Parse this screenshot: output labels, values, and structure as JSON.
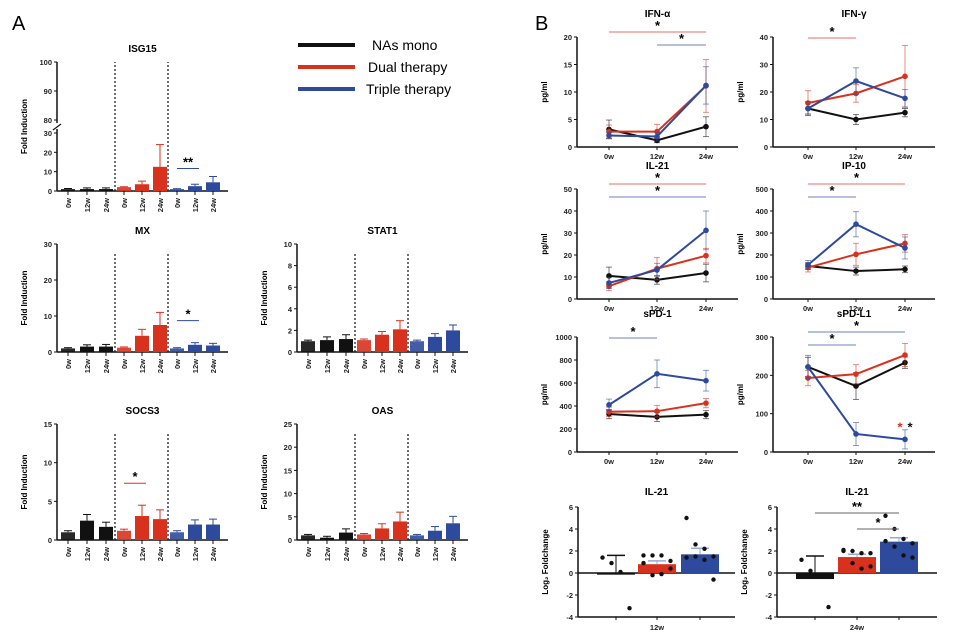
{
  "panels": {
    "a": "A",
    "b": "B"
  },
  "legend": [
    {
      "label": "NAs mono",
      "color": "#111111"
    },
    {
      "label": "Dual therapy",
      "color": "#d8321f"
    },
    {
      "label": "Triple therapy",
      "color": "#2d4a9c"
    }
  ],
  "chart_data": [
    {
      "type": "bar",
      "title": "ISG15",
      "ylabel": "Fold Induction",
      "ylim": [
        0,
        100
      ],
      "axis_break": [
        30,
        80
      ],
      "yticks": [
        "0",
        "10",
        "20",
        "30",
        "80",
        "90",
        "100"
      ],
      "xticklabels": [
        "0w",
        "12w",
        "24w"
      ],
      "series": [
        {
          "name": "NAs mono",
          "values": [
            1,
            1,
            1
          ],
          "err": [
            0.3,
            0.6,
            0.6
          ]
        },
        {
          "name": "Dual therapy",
          "values": [
            2,
            3.5,
            12.5
          ],
          "err": [
            0.2,
            1.6,
            11.5
          ]
        },
        {
          "name": "Triple therapy",
          "values": [
            1,
            2.5,
            4.5
          ],
          "err": [
            0.2,
            1,
            3
          ]
        }
      ],
      "annotations": [
        {
          "text": "**",
          "group": 2,
          "from": 0,
          "to": 1
        }
      ]
    },
    {
      "type": "bar",
      "title": "MX",
      "ylabel": "Fold Induction",
      "ylim": [
        0,
        30
      ],
      "yticks": [
        "0",
        "10",
        "20",
        "30"
      ],
      "xticklabels": [
        "0w",
        "12w",
        "24w"
      ],
      "series": [
        {
          "name": "NAs mono",
          "values": [
            1,
            1.5,
            1.5
          ],
          "err": [
            0.2,
            0.5,
            0.6
          ]
        },
        {
          "name": "Dual therapy",
          "values": [
            1.2,
            4.5,
            7.5
          ],
          "err": [
            0.2,
            1.8,
            3.5
          ]
        },
        {
          "name": "Triple therapy",
          "values": [
            1,
            2,
            1.8
          ],
          "err": [
            0.2,
            0.6,
            0.6
          ]
        }
      ],
      "annotations": [
        {
          "text": "*",
          "group": 2,
          "from": 0,
          "to": 1
        }
      ]
    },
    {
      "type": "bar",
      "title": "STAT1",
      "ylabel": "Fold Induction",
      "ylim": [
        0,
        10
      ],
      "yticks": [
        "0",
        "2",
        "4",
        "6",
        "8",
        "10"
      ],
      "xticklabels": [
        "0w",
        "12w",
        "24w"
      ],
      "series": [
        {
          "name": "NAs mono",
          "values": [
            1,
            1.1,
            1.2
          ],
          "err": [
            0.1,
            0.3,
            0.4
          ]
        },
        {
          "name": "Dual therapy",
          "values": [
            1.1,
            1.6,
            2.1
          ],
          "err": [
            0.1,
            0.3,
            0.8
          ]
        },
        {
          "name": "Triple therapy",
          "values": [
            1,
            1.4,
            2
          ],
          "err": [
            0.1,
            0.3,
            0.5
          ]
        }
      ],
      "annotations": []
    },
    {
      "type": "bar",
      "title": "SOCS3",
      "ylabel": "Fold Induction",
      "ylim": [
        0,
        15
      ],
      "yticks": [
        "0",
        "5",
        "10",
        "15"
      ],
      "xticklabels": [
        "0w",
        "12w",
        "24w"
      ],
      "series": [
        {
          "name": "NAs mono",
          "values": [
            1,
            2.5,
            1.7
          ],
          "err": [
            0.2,
            0.8,
            0.6
          ]
        },
        {
          "name": "Dual therapy",
          "values": [
            1.2,
            3.1,
            2.7
          ],
          "err": [
            0.2,
            1.4,
            1.2
          ]
        },
        {
          "name": "Triple therapy",
          "values": [
            1,
            2,
            2
          ],
          "err": [
            0.2,
            0.6,
            0.7
          ]
        }
      ],
      "annotations": [
        {
          "text": "*",
          "group": 1,
          "from": 0,
          "to": 1
        }
      ]
    },
    {
      "type": "bar",
      "title": "OAS",
      "ylabel": "Fold Induction",
      "ylim": [
        0,
        25
      ],
      "yticks": [
        "0",
        "5",
        "10",
        "15",
        "20",
        "25"
      ],
      "xticklabels": [
        "0w",
        "12w",
        "24w"
      ],
      "series": [
        {
          "name": "NAs mono",
          "values": [
            1,
            0.5,
            1.6
          ],
          "err": [
            0.2,
            0.3,
            0.8
          ]
        },
        {
          "name": "Dual therapy",
          "values": [
            1.2,
            2.5,
            4
          ],
          "err": [
            0.2,
            1,
            2
          ]
        },
        {
          "name": "Triple therapy",
          "values": [
            1,
            2,
            3.6
          ],
          "err": [
            0.2,
            0.9,
            1.5
          ]
        }
      ],
      "annotations": []
    },
    {
      "type": "line",
      "title": "IFN-α",
      "ylabel": "pg/ml",
      "ylim": [
        0,
        20
      ],
      "yticks": [
        "0",
        "5",
        "10",
        "15",
        "20"
      ],
      "x": [
        "0w",
        "12w",
        "24w"
      ],
      "series": [
        {
          "name": "NAs mono",
          "values": [
            3.2,
            1.2,
            3.7
          ],
          "err": [
            1.7,
            0.4,
            1.8
          ]
        },
        {
          "name": "Dual therapy",
          "values": [
            2.8,
            2.8,
            11.1
          ],
          "err": [
            1.2,
            1.3,
            4.8
          ]
        },
        {
          "name": "Triple therapy",
          "values": [
            2.1,
            1.9,
            11.2
          ],
          "err": [
            0.5,
            0.8,
            3.4
          ]
        }
      ],
      "annotations": [
        {
          "text": "*",
          "from": 0,
          "to": 2,
          "color": "#d8321f",
          "level": 0
        },
        {
          "text": "*",
          "from": 1,
          "to": 2,
          "color": "#2d4a9c",
          "level": 1
        }
      ]
    },
    {
      "type": "line",
      "title": "IFN-γ",
      "ylabel": "pg/ml",
      "ylim": [
        0,
        40
      ],
      "yticks": [
        "0",
        "10",
        "20",
        "30",
        "40"
      ],
      "x": [
        "0w",
        "12w",
        "24w"
      ],
      "series": [
        {
          "name": "NAs mono",
          "values": [
            14,
            10,
            12.5
          ],
          "err": [
            2,
            1.8,
            1.5
          ]
        },
        {
          "name": "Dual therapy",
          "values": [
            16,
            19.5,
            25.7
          ],
          "err": [
            4.5,
            3.2,
            11.2
          ]
        },
        {
          "name": "Triple therapy",
          "values": [
            14,
            24,
            17.7
          ],
          "err": [
            2.5,
            4.8,
            3.2
          ]
        }
      ],
      "annotations": [
        {
          "text": "*",
          "from": 0,
          "to": 1,
          "color": "#d8321f",
          "level": 0
        }
      ]
    },
    {
      "type": "line",
      "title": "IL-21",
      "ylabel": "pg/ml",
      "ylim": [
        0,
        50
      ],
      "yticks": [
        "0",
        "10",
        "20",
        "30",
        "40",
        "50"
      ],
      "x": [
        "0w",
        "12w",
        "24w"
      ],
      "series": [
        {
          "name": "NAs mono",
          "values": [
            10.5,
            8.7,
            11.8
          ],
          "err": [
            4,
            2,
            4
          ]
        },
        {
          "name": "Dual therapy",
          "values": [
            5.8,
            13.8,
            19.7
          ],
          "err": [
            2,
            5,
            3.3
          ]
        },
        {
          "name": "Triple therapy",
          "values": [
            7.3,
            13.2,
            31.2
          ],
          "err": [
            2.5,
            3,
            8.8
          ]
        }
      ],
      "annotations": [
        {
          "text": "*",
          "from": 0,
          "to": 2,
          "color": "#d8321f",
          "level": 0
        },
        {
          "text": "*",
          "from": 0,
          "to": 2,
          "color": "#2d4a9c",
          "level": 1
        }
      ]
    },
    {
      "type": "line",
      "title": "IP-10",
      "ylabel": "pg/ml",
      "ylim": [
        0,
        500
      ],
      "yticks": [
        "0",
        "100",
        "200",
        "300",
        "400",
        "500"
      ],
      "x": [
        "0w",
        "12w",
        "24w"
      ],
      "series": [
        {
          "name": "NAs mono",
          "values": [
            150,
            127,
            135
          ],
          "err": [
            15,
            18,
            15
          ]
        },
        {
          "name": "Dual therapy",
          "values": [
            143,
            203,
            253
          ],
          "err": [
            20,
            50,
            40
          ]
        },
        {
          "name": "Triple therapy",
          "values": [
            155,
            340,
            232
          ],
          "err": [
            20,
            57,
            50
          ]
        }
      ],
      "annotations": [
        {
          "text": "*",
          "from": 0,
          "to": 2,
          "color": "#d8321f",
          "level": 0
        },
        {
          "text": "*",
          "from": 0,
          "to": 1,
          "color": "#2d4a9c",
          "level": 1
        }
      ]
    },
    {
      "type": "line",
      "title": "sPD-1",
      "ylabel": "pg/ml",
      "ylim": [
        0,
        1000
      ],
      "yticks": [
        "0",
        "200",
        "400",
        "600",
        "800",
        "1000"
      ],
      "x": [
        "0w",
        "12w",
        "24w"
      ],
      "series": [
        {
          "name": "NAs mono",
          "values": [
            330,
            305,
            325
          ],
          "err": [
            40,
            40,
            35
          ]
        },
        {
          "name": "Dual therapy",
          "values": [
            350,
            355,
            425
          ],
          "err": [
            40,
            50,
            40
          ]
        },
        {
          "name": "Triple therapy",
          "values": [
            410,
            680,
            620
          ],
          "err": [
            50,
            120,
            90
          ]
        }
      ],
      "annotations": [
        {
          "text": "*",
          "from": 0,
          "to": 1,
          "color": "#2d4a9c",
          "level": 0
        }
      ]
    },
    {
      "type": "line",
      "title": "sPD-L1",
      "ylabel": "pg/ml",
      "ylim": [
        0,
        300
      ],
      "yticks": [
        "0",
        "100",
        "200",
        "300"
      ],
      "x": [
        "0w",
        "12w",
        "24w"
      ],
      "series": [
        {
          "name": "NAs mono",
          "values": [
            222,
            172,
            233
          ],
          "err": [
            25,
            35,
            15
          ]
        },
        {
          "name": "Dual therapy",
          "values": [
            193,
            203,
            253
          ],
          "err": [
            20,
            25,
            30
          ]
        },
        {
          "name": "Triple therapy",
          "values": [
            222,
            47,
            33
          ],
          "err": [
            30,
            30,
            25
          ]
        }
      ],
      "annotations": [
        {
          "text": "*",
          "from": 0,
          "to": 2,
          "color": "#2d4a9c",
          "level": 0
        },
        {
          "text": "*",
          "from": 0,
          "to": 1,
          "color": "#2d4a9c",
          "level": 1
        },
        {
          "text": "*",
          "point": 2,
          "color": "#d8321f",
          "extra": "*"
        }
      ]
    },
    {
      "type": "bar",
      "title": "IL-21",
      "ylabel": "Log₂ Foldchange",
      "xlabel": "12w",
      "ylim": [
        -4,
        6
      ],
      "yticks": [
        "-4",
        "-2",
        "0",
        "2",
        "4",
        "6"
      ],
      "series": [
        {
          "name": "NAs mono",
          "value": -0.15,
          "err": 0.95,
          "points": [
            1.4,
            0.9,
            0.1,
            -3.2
          ]
        },
        {
          "name": "Dual therapy",
          "value": 0.8,
          "err": 0.3,
          "points": [
            1.6,
            1.6,
            1.6,
            1.1,
            0.9,
            -0.2,
            -0.1,
            0.4
          ]
        },
        {
          "name": "Triple therapy",
          "value": 1.7,
          "err": 0.55,
          "points": [
            5,
            2.6,
            2.2,
            1.5,
            1.4,
            1.5,
            1.2,
            -0.6
          ]
        }
      ],
      "annotations": []
    },
    {
      "type": "bar",
      "title": "IL-21",
      "ylabel": "Log₂ Foldchange",
      "xlabel": "24w",
      "ylim": [
        -4,
        6
      ],
      "yticks": [
        "-4",
        "-2",
        "0",
        "2",
        "4",
        "6"
      ],
      "series": [
        {
          "name": "NAs mono",
          "value": -0.55,
          "err": 1.3,
          "points": [
            1.2,
            0.2,
            -0.2,
            -3.1
          ]
        },
        {
          "name": "Dual therapy",
          "value": 1.45,
          "err": 0.25,
          "points": [
            2,
            2,
            1.8,
            1.8,
            2.1,
            0.9,
            0.4,
            0.6
          ]
        },
        {
          "name": "Triple therapy",
          "value": 2.85,
          "err": 0.35,
          "points": [
            5.2,
            4,
            3.1,
            2.7,
            2.9,
            2.4,
            1.6,
            1.4
          ]
        }
      ],
      "annotations": [
        {
          "text": "**",
          "from": 0,
          "to": 2,
          "level": 0
        },
        {
          "text": "*",
          "from": 1,
          "to": 2,
          "level": 1
        }
      ]
    }
  ]
}
